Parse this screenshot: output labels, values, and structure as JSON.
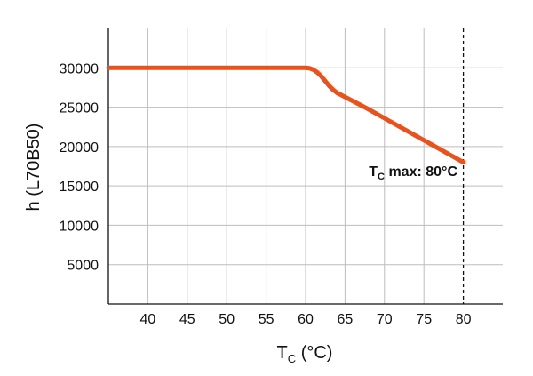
{
  "chart_data": {
    "type": "line",
    "title": "",
    "xlabel_main": "T",
    "xlabel_sub": "C",
    "xlabel_unit": " (°C)",
    "ylabel": "h (L70B50)",
    "xlim": [
      35,
      85
    ],
    "ylim": [
      0,
      35000
    ],
    "x_ticks": [
      "40",
      "45",
      "50",
      "55",
      "60",
      "65",
      "70",
      "75",
      "80"
    ],
    "y_ticks": [
      "5000",
      "10000",
      "15000",
      "20000",
      "25000",
      "30000"
    ],
    "grid": true,
    "series": [
      {
        "color": "#E8521C",
        "x": [
          35,
          40,
          45,
          50,
          55,
          60,
          60.5,
          61,
          61.5,
          62,
          62.5,
          63,
          63.5,
          64,
          64.5,
          65,
          67.5,
          70,
          72.5,
          75,
          77.5,
          80
        ],
        "y": [
          30000,
          30000,
          30000,
          30000,
          30000,
          30000,
          29950,
          29750,
          29400,
          28900,
          28300,
          27700,
          27200,
          26800,
          26550,
          26300,
          25000,
          23600,
          22200,
          20800,
          19400,
          18000
        ]
      }
    ],
    "reference_line": {
      "x": 80,
      "style": "dashed"
    },
    "annotation": {
      "main": "T",
      "sub": "C",
      "rest": " max: 80°C",
      "x": 80,
      "y": 18000
    }
  }
}
